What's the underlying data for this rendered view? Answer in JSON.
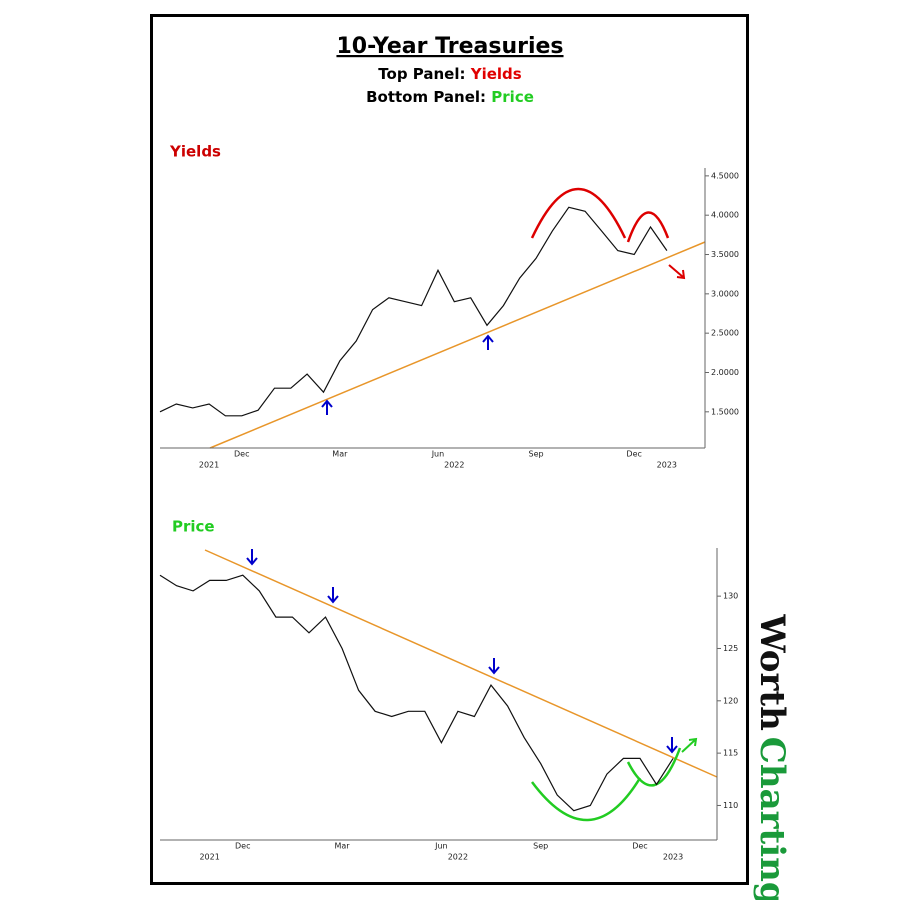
{
  "header": {
    "title": "10-Year Treasuries",
    "subtitles": [
      {
        "text": "Top Panel:",
        "highlight": "Yields",
        "color": "#e00000"
      },
      {
        "text": "Bottom Panel:",
        "highlight": "Price",
        "color": "#22cc22"
      }
    ]
  },
  "chart_data": [
    {
      "type": "line",
      "title": "Yields",
      "title_color": "#cc0000",
      "color": "#111111",
      "categories": [
        null,
        null,
        null,
        null,
        null,
        "Dec",
        null,
        null,
        null,
        null,
        null,
        "Mar",
        null,
        null,
        null,
        null,
        null,
        "Jun",
        null,
        null,
        null,
        null,
        null,
        "Sep",
        null,
        null,
        null,
        null,
        null,
        "Dec",
        null,
        null
      ],
      "years": [
        null,
        null,
        null,
        "2021",
        null,
        null,
        null,
        null,
        null,
        null,
        null,
        null,
        null,
        null,
        null,
        null,
        null,
        null,
        "2022",
        null,
        null,
        null,
        null,
        null,
        null,
        null,
        null,
        null,
        null,
        null,
        null,
        "2023"
      ],
      "values": [
        1.5,
        1.6,
        1.55,
        1.6,
        1.45,
        1.45,
        1.52,
        1.8,
        1.8,
        1.98,
        1.75,
        2.15,
        2.4,
        2.8,
        2.95,
        2.9,
        2.85,
        3.3,
        2.9,
        2.95,
        2.6,
        2.85,
        3.2,
        3.45,
        3.8,
        4.1,
        4.05,
        3.8,
        3.55,
        3.5,
        3.85,
        3.55
      ],
      "ylim": [
        1.04,
        4.6
      ],
      "yticks": [
        {
          "value": 1.5,
          "label": "1.5000"
        },
        {
          "value": 2,
          "label": "2.0000"
        },
        {
          "value": 2.5,
          "label": "2.5000"
        },
        {
          "value": 3,
          "label": "3.0000"
        },
        {
          "value": 3.5,
          "label": "3.5000"
        },
        {
          "value": 4,
          "label": "4.0000"
        },
        {
          "value": 4.5,
          "label": "4.5000"
        }
      ]
    },
    {
      "type": "line",
      "title": "Price",
      "title_color": "#22cc22",
      "color": "#111111",
      "categories": [
        null,
        null,
        null,
        null,
        null,
        "Dec",
        null,
        null,
        null,
        null,
        null,
        "Mar",
        null,
        null,
        null,
        null,
        null,
        "Jun",
        null,
        null,
        null,
        null,
        null,
        "Sep",
        null,
        null,
        null,
        null,
        null,
        "Dec",
        null,
        null
      ],
      "years": [
        null,
        null,
        null,
        "2021",
        null,
        null,
        null,
        null,
        null,
        null,
        null,
        null,
        null,
        null,
        null,
        null,
        null,
        null,
        "2022",
        null,
        null,
        null,
        null,
        null,
        null,
        null,
        null,
        null,
        null,
        null,
        null,
        "2023"
      ],
      "values": [
        132,
        131,
        130.5,
        131.5,
        131.5,
        132,
        130.5,
        128,
        128,
        126.5,
        128,
        125,
        121,
        119,
        118.5,
        119,
        119,
        116,
        119,
        118.5,
        121.5,
        119.5,
        116.5,
        114,
        111,
        109.5,
        110,
        113,
        114.5,
        114.5,
        112,
        114.5
      ],
      "ylim": [
        106.7,
        134.6
      ],
      "yticks": [
        110,
        115,
        120,
        125,
        130
      ]
    }
  ],
  "brand": {
    "first": "Worth",
    "second": "Charting"
  }
}
